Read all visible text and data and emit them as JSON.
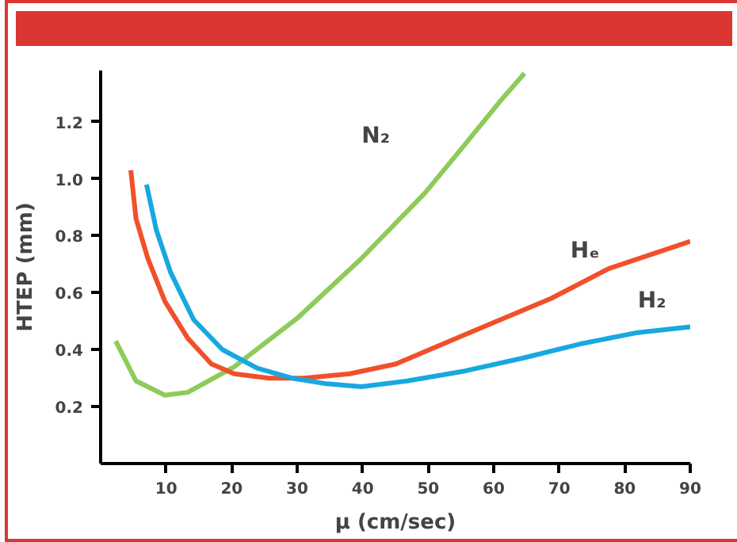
{
  "chart_data": {
    "type": "line",
    "xlabel": "μ (cm/sec)",
    "ylabel": "HTEP (mm)",
    "xlim": [
      0,
      90
    ],
    "ylim": [
      0,
      1.38
    ],
    "xticks": [
      10,
      20,
      30,
      40,
      50,
      60,
      70,
      80,
      90
    ],
    "yticks": [
      0.2,
      0.4,
      0.6,
      0.8,
      {
        "value": 1,
        "label": "1.0"
      },
      1.2
    ],
    "grid": false,
    "series": [
      {
        "name": "N₂",
        "color": "#8dcb5a",
        "x": [
          2.3,
          5.4,
          9.8,
          13.3,
          20.4,
          30,
          39.8,
          49.5,
          55.6,
          60.9,
          64.7
        ],
        "values": [
          0.43,
          0.29,
          0.24,
          0.25,
          0.34,
          0.51,
          0.72,
          0.95,
          1.12,
          1.27,
          1.37
        ]
      },
      {
        "name": "Hₑ",
        "color": "#f0502a",
        "x": [
          4.6,
          5.4,
          7.2,
          9.8,
          13.3,
          16.9,
          20.4,
          25.7,
          31,
          38,
          45.1,
          51.2,
          60,
          68.8,
          77.6,
          90
        ],
        "values": [
          1.03,
          0.86,
          0.72,
          0.57,
          0.44,
          0.35,
          0.315,
          0.3,
          0.3,
          0.315,
          0.35,
          0.41,
          0.495,
          0.58,
          0.685,
          0.78
        ]
      },
      {
        "name": "H₂",
        "color": "#18a8e0",
        "x": [
          7,
          8.5,
          10.7,
          14.2,
          18.6,
          23.9,
          29.2,
          34.5,
          39.8,
          46.8,
          55.6,
          64.4,
          73.2,
          82,
          90
        ],
        "values": [
          0.98,
          0.82,
          0.67,
          0.505,
          0.4,
          0.335,
          0.3,
          0.28,
          0.27,
          0.29,
          0.325,
          0.37,
          0.42,
          0.46,
          0.48
        ]
      }
    ]
  }
}
